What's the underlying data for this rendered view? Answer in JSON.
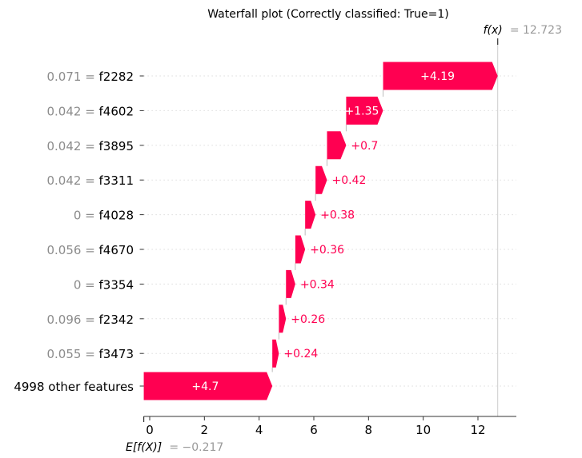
{
  "chart_data": {
    "type": "bar",
    "title": "Waterfall plot (Correctly classified: True=1)",
    "base_value": -0.217,
    "base_label_main": "E[f(X)]",
    "base_label_value": "= −0.217",
    "output_value": 12.723,
    "output_label_main": "f(x)",
    "output_label_value": "= 12.723",
    "xlim": [
      -0.217,
      13.4
    ],
    "xticks": [
      0,
      2,
      4,
      6,
      8,
      10,
      12
    ],
    "colors": {
      "positive": "#ff0051",
      "grid": "#cccccc",
      "dim_text": "#8c8c8c"
    },
    "features": [
      {
        "value": "0.071 =",
        "name": "f2282",
        "contribution": 4.19,
        "label": "+4.19"
      },
      {
        "value": "0.042 =",
        "name": "f4602",
        "contribution": 1.35,
        "label": "+1.35"
      },
      {
        "value": "0.042 =",
        "name": "f3895",
        "contribution": 0.7,
        "label": "+0.7"
      },
      {
        "value": "0.042 =",
        "name": "f3311",
        "contribution": 0.42,
        "label": "+0.42"
      },
      {
        "value": "0 =",
        "name": "f4028",
        "contribution": 0.38,
        "label": "+0.38"
      },
      {
        "value": "0.056 =",
        "name": "f4670",
        "contribution": 0.36,
        "label": "+0.36"
      },
      {
        "value": "0 =",
        "name": "f3354",
        "contribution": 0.34,
        "label": "+0.34"
      },
      {
        "value": "0.096 =",
        "name": "f2342",
        "contribution": 0.26,
        "label": "+0.26"
      },
      {
        "value": "0.055 =",
        "name": "f3473",
        "contribution": 0.24,
        "label": "+0.24"
      },
      {
        "value": "",
        "name": "4998 other features",
        "contribution": 4.7,
        "label": "+4.7"
      }
    ]
  }
}
